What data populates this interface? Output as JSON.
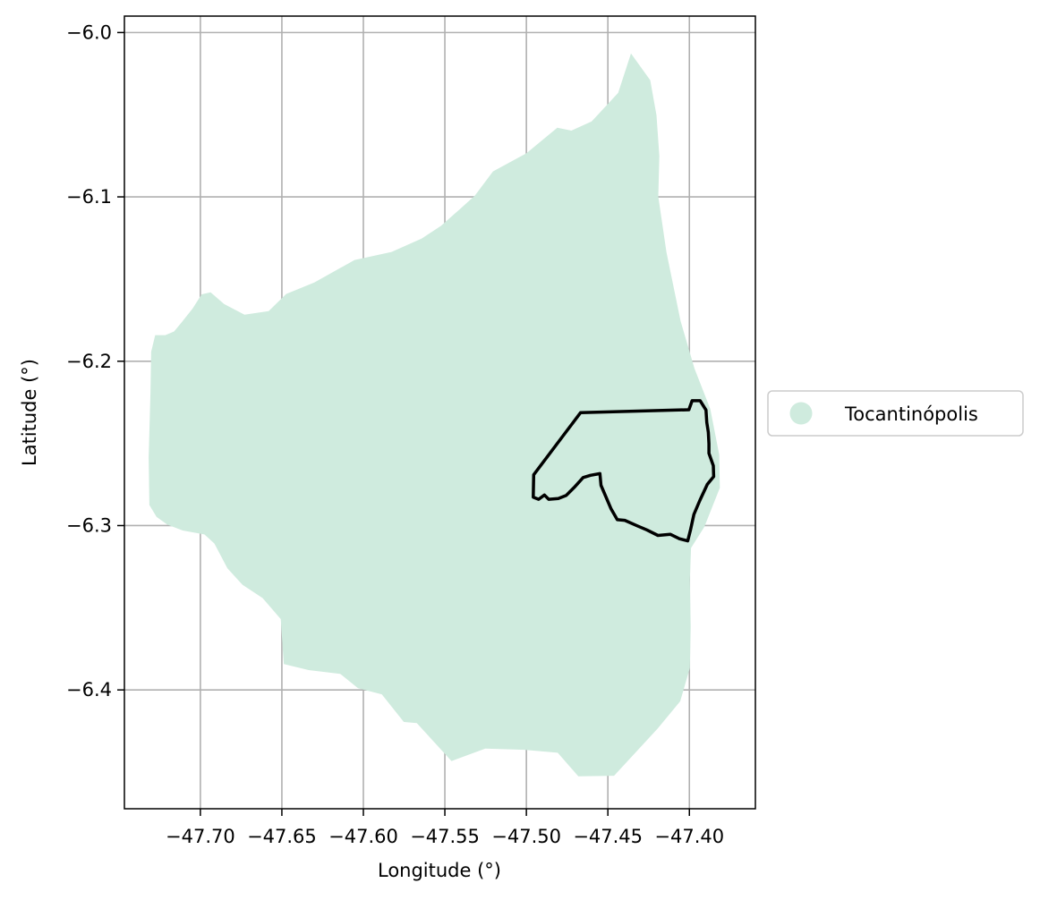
{
  "chart_data": {
    "type": "map",
    "xlabel": "Longitude (°)",
    "ylabel": "Latitude (°)",
    "xlim": [
      -47.7466,
      -47.3595
    ],
    "ylim": [
      -6.4723,
      -5.99
    ],
    "x_ticks": [
      -47.7,
      -47.65,
      -47.6,
      -47.55,
      -47.5,
      -47.45,
      -47.4
    ],
    "x_tick_labels": [
      "−47.70",
      "−47.65",
      "−47.60",
      "−47.55",
      "−47.50",
      "−47.45",
      "−47.40"
    ],
    "y_ticks": [
      -6.0,
      -6.1,
      -6.2,
      -6.3,
      -6.4
    ],
    "y_tick_labels": [
      "−6.0",
      "−6.1",
      "−6.2",
      "−6.3",
      "−6.4"
    ],
    "grid": true,
    "legend": {
      "placement": "center-right outside",
      "entries": [
        {
          "label": "Tocantinópolis",
          "color": "#cfebde",
          "marker": "circle"
        }
      ]
    },
    "layers": [
      {
        "name": "Tocantinópolis",
        "kind": "filled-polygon",
        "color": "#cfebde",
        "coordinates": [
          [
            -47.7277,
            -6.1841
          ],
          [
            -47.7215,
            -6.1841
          ],
          [
            -47.7161,
            -6.1819
          ],
          [
            -47.7116,
            -6.1765
          ],
          [
            -47.7047,
            -6.1679
          ],
          [
            -47.6992,
            -6.1593
          ],
          [
            -47.6937,
            -6.1581
          ],
          [
            -47.6855,
            -6.1652
          ],
          [
            -47.6729,
            -6.1717
          ],
          [
            -47.6581,
            -6.1695
          ],
          [
            -47.6474,
            -6.1591
          ],
          [
            -47.6301,
            -6.1521
          ],
          [
            -47.6054,
            -6.1384
          ],
          [
            -47.5827,
            -6.1335
          ],
          [
            -47.5642,
            -6.1253
          ],
          [
            -47.5525,
            -6.1177
          ],
          [
            -47.5413,
            -6.1079
          ],
          [
            -47.5316,
            -6.0992
          ],
          [
            -47.5205,
            -6.0845
          ],
          [
            -47.5,
            -6.0735
          ],
          [
            -47.481,
            -6.0579
          ],
          [
            -47.4724,
            -6.0597
          ],
          [
            -47.46,
            -6.0541
          ],
          [
            -47.4437,
            -6.0367
          ],
          [
            -47.4358,
            -6.0127
          ],
          [
            -47.424,
            -6.029
          ],
          [
            -47.4202,
            -6.0503
          ],
          [
            -47.4184,
            -6.0752
          ],
          [
            -47.4191,
            -6.0998
          ],
          [
            -47.4141,
            -6.1336
          ],
          [
            -47.4054,
            -6.1755
          ],
          [
            -47.3969,
            -6.2043
          ],
          [
            -47.3872,
            -6.229
          ],
          [
            -47.3817,
            -6.2569
          ],
          [
            -47.3813,
            -6.277
          ],
          [
            -47.3908,
            -6.3008
          ],
          [
            -47.399,
            -6.3136
          ],
          [
            -47.3997,
            -6.3328
          ],
          [
            -47.3992,
            -6.3617
          ],
          [
            -47.3997,
            -6.3866
          ],
          [
            -47.4056,
            -6.4069
          ],
          [
            -47.4194,
            -6.4234
          ],
          [
            -47.4331,
            -6.4381
          ],
          [
            -47.4462,
            -6.4522
          ],
          [
            -47.4681,
            -6.4526
          ],
          [
            -47.4808,
            -6.4382
          ],
          [
            -47.5012,
            -6.4364
          ],
          [
            -47.5252,
            -6.4357
          ],
          [
            -47.5459,
            -6.4433
          ],
          [
            -47.5672,
            -6.4202
          ],
          [
            -47.5752,
            -6.4195
          ],
          [
            -47.5887,
            -6.4027
          ],
          [
            -47.6033,
            -6.3989
          ],
          [
            -47.6142,
            -6.3902
          ],
          [
            -47.6336,
            -6.3879
          ],
          [
            -47.6488,
            -6.3842
          ],
          [
            -47.6507,
            -6.3569
          ],
          [
            -47.6618,
            -6.3441
          ],
          [
            -47.6742,
            -6.336
          ],
          [
            -47.6834,
            -6.326
          ],
          [
            -47.6914,
            -6.3109
          ],
          [
            -47.6975,
            -6.3054
          ],
          [
            -47.7108,
            -6.303
          ],
          [
            -47.7203,
            -6.2994
          ],
          [
            -47.7269,
            -6.2947
          ],
          [
            -47.7313,
            -6.2875
          ],
          [
            -47.7317,
            -6.2586
          ],
          [
            -47.7306,
            -6.2194
          ],
          [
            -47.7302,
            -6.1943
          ]
        ]
      },
      {
        "name": "outline",
        "kind": "polygon-boundary",
        "color": "#000000",
        "coordinates": [
          [
            -47.4955,
            -6.2691
          ],
          [
            -47.4668,
            -6.2313
          ],
          [
            -47.4003,
            -6.2295
          ],
          [
            -47.3983,
            -6.224
          ],
          [
            -47.3934,
            -6.224
          ],
          [
            -47.3898,
            -6.2297
          ],
          [
            -47.3893,
            -6.2372
          ],
          [
            -47.3884,
            -6.2432
          ],
          [
            -47.388,
            -6.2502
          ],
          [
            -47.388,
            -6.256
          ],
          [
            -47.3853,
            -6.2636
          ],
          [
            -47.3851,
            -6.2702
          ],
          [
            -47.389,
            -6.2749
          ],
          [
            -47.3935,
            -6.2845
          ],
          [
            -47.3972,
            -6.2932
          ],
          [
            -47.3994,
            -6.3031
          ],
          [
            -47.401,
            -6.3093
          ],
          [
            -47.4061,
            -6.308
          ],
          [
            -47.4117,
            -6.3053
          ],
          [
            -47.4193,
            -6.306
          ],
          [
            -47.4261,
            -6.3026
          ],
          [
            -47.4319,
            -6.3002
          ],
          [
            -47.4396,
            -6.2968
          ],
          [
            -47.4442,
            -6.2964
          ],
          [
            -47.448,
            -6.2899
          ],
          [
            -47.4542,
            -6.2755
          ],
          [
            -47.4549,
            -6.2684
          ],
          [
            -47.4607,
            -6.2694
          ],
          [
            -47.4652,
            -6.2708
          ],
          [
            -47.4707,
            -6.2768
          ],
          [
            -47.4755,
            -6.2816
          ],
          [
            -47.4804,
            -6.2835
          ],
          [
            -47.4863,
            -6.284
          ],
          [
            -47.4889,
            -6.2814
          ],
          [
            -47.4925,
            -6.284
          ],
          [
            -47.4958,
            -6.2827
          ]
        ]
      }
    ]
  }
}
